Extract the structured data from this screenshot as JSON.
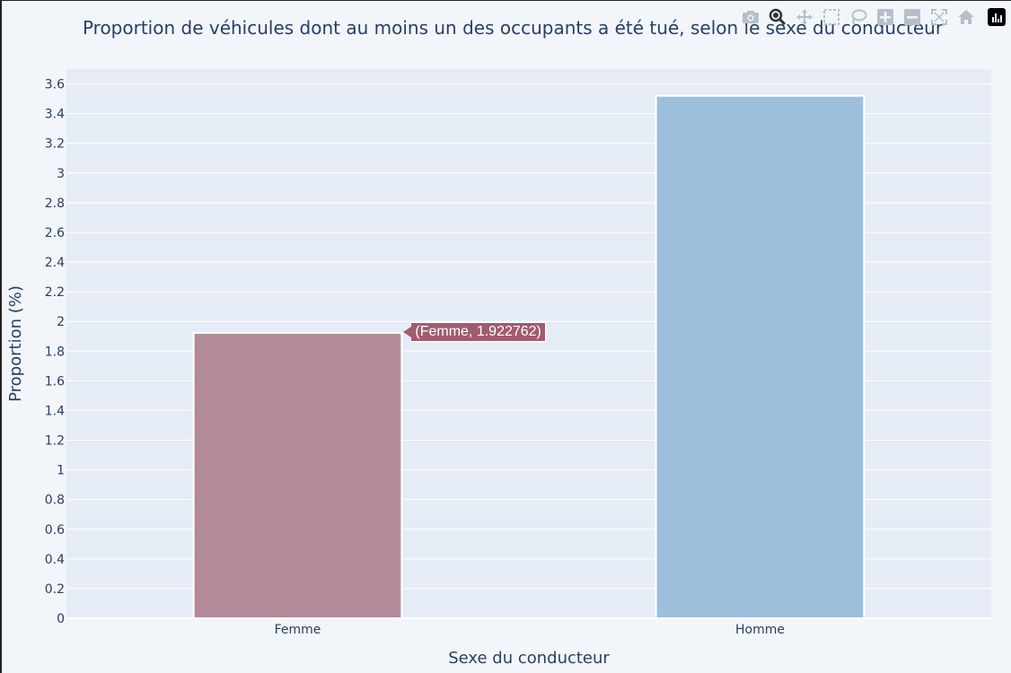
{
  "chart_data": {
    "type": "bar",
    "title": "Proportion de véhicules dont au moins un des occupants a été tué, selon le sexe du conducteur",
    "xlabel": "Sexe du conducteur",
    "ylabel": "Proportion (%)",
    "categories": [
      "Femme",
      "Homme"
    ],
    "values": [
      1.922762,
      3.52
    ],
    "bar_colors": [
      "#b38a99",
      "#9dbfdc"
    ],
    "ylim": [
      0,
      3.7
    ],
    "yticks": [
      0,
      0.2,
      0.4,
      0.6,
      0.8,
      1,
      1.2,
      1.4,
      1.6,
      1.8,
      2,
      2.2,
      2.4,
      2.6,
      2.8,
      3,
      3.2,
      3.4,
      3.6
    ],
    "grid": true,
    "hover_label": "(Femme, 1.922762)",
    "hover_color": "#a05c6f",
    "plot_bg": "#e5ecf6",
    "paper_bg": "#f2f5fa"
  },
  "modebar": {
    "icons": [
      "camera-icon",
      "zoom-icon",
      "pan-icon",
      "box-select-icon",
      "lasso-select-icon",
      "zoom-in-icon",
      "zoom-out-icon",
      "autoscale-icon",
      "reset-axes-icon",
      "plotly-logo-icon"
    ]
  }
}
